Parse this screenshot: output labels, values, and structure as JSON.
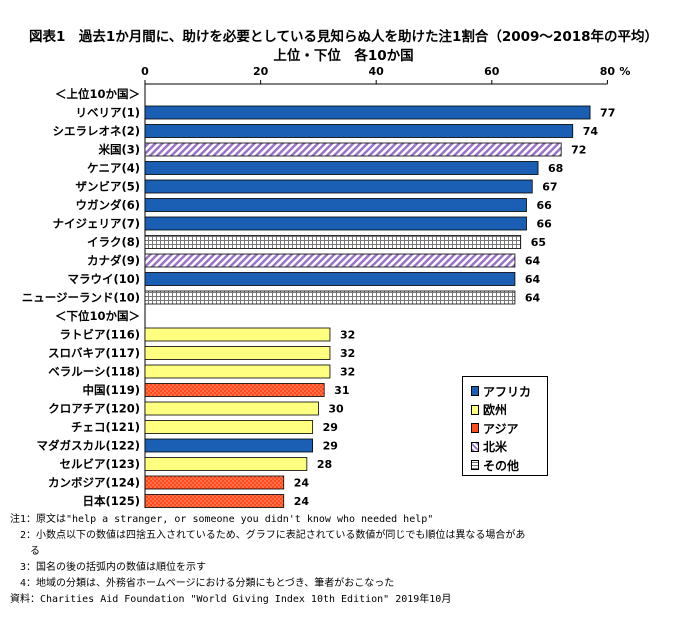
{
  "title_line1": "図表1　過去1か月間に、助けを必要としている見知らぬ人を助けた注1割合（2009～2018年の平均）",
  "title_line2": "上位・下位　各10か国",
  "colors": {
    "africa": "#1a5fb4",
    "europe": "#ffff80",
    "asia": "#ff4a1c",
    "north_america": "#b38fd6",
    "other": "#e4e4e4"
  },
  "chart_data": {
    "type": "bar",
    "orientation": "horizontal",
    "x_axis": {
      "min": 0,
      "max": 80,
      "ticks": [
        "0",
        "20",
        "40",
        "60",
        "80"
      ],
      "unit": "%"
    },
    "group_labels": [
      "＜上位10か国＞",
      "＜下位10か国＞"
    ],
    "categories": [
      "リベリア(1)",
      "シエラレオネ(2)",
      "米国(3)",
      "ケニア(4)",
      "ザンビア(5)",
      "ウガンダ(6)",
      "ナイジェリア(7)",
      "イラク(8)",
      "カナダ(9)",
      "マラウイ(10)",
      "ニュージーランド(10)",
      "ラトビア(116)",
      "スロバキア(117)",
      "ベラルーシ(118)",
      "中国(119)",
      "クロアチア(120)",
      "チェコ(121)",
      "マダガスカル(122)",
      "セルビア(123)",
      "カンボジア(124)",
      "日本(125)"
    ],
    "values": [
      77,
      74,
      72,
      68,
      67,
      66,
      66,
      65,
      64,
      64,
      64,
      32,
      32,
      32,
      31,
      30,
      29,
      29,
      28,
      24,
      24
    ],
    "regions": [
      "africa",
      "africa",
      "north_america",
      "africa",
      "africa",
      "africa",
      "africa",
      "other",
      "north_america",
      "africa",
      "other",
      "europe",
      "europe",
      "europe",
      "asia",
      "europe",
      "europe",
      "africa",
      "europe",
      "asia",
      "asia"
    ],
    "legend": [
      {
        "key": "africa",
        "label": "アフリカ"
      },
      {
        "key": "europe",
        "label": "欧州"
      },
      {
        "key": "asia",
        "label": "アジア"
      },
      {
        "key": "north_america",
        "label": "北米"
      },
      {
        "key": "other",
        "label": "その他"
      }
    ],
    "legend_position": "right"
  },
  "notes": [
    "注1：原文は\"help a stranger, or someone you didn't know who needed help\"",
    "　2：小数点以下の数値は四捨五入されているため、グラフに表記されている数値が同じでも順位は異なる場合があ",
    "　　る",
    "　3：国名の後の括弧内の数値は順位を示す",
    "　4：地域の分類は、外務省ホームページにおける分類にもとづき、筆者がおこなった",
    "資料：Charities Aid Foundation \"World Giving Index 10th Edition\" 2019年10月"
  ]
}
